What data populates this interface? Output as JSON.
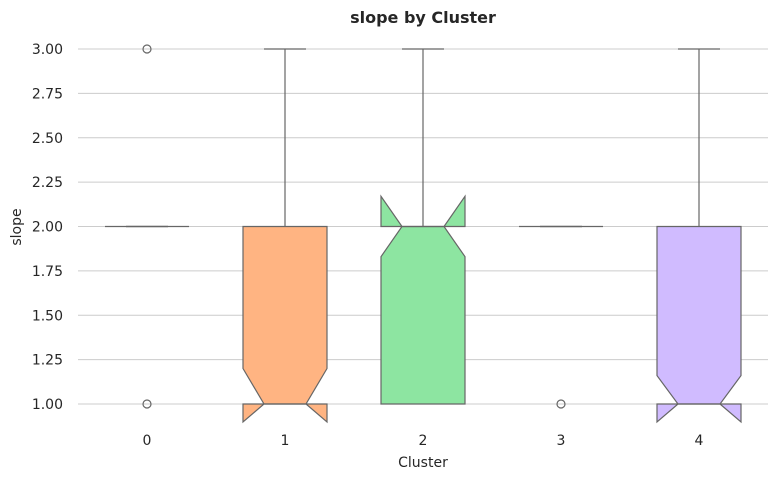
{
  "chart_data": {
    "type": "box",
    "title": "slope by Cluster",
    "xlabel": "Cluster",
    "ylabel": "slope",
    "categories": [
      "0",
      "1",
      "2",
      "3",
      "4"
    ],
    "ylim": [
      0.9,
      3.1
    ],
    "yticks": [
      "1.00",
      "1.25",
      "1.50",
      "1.75",
      "2.00",
      "2.25",
      "2.50",
      "2.75",
      "3.00"
    ],
    "grid": "horizontal",
    "notched": true,
    "boxes": [
      {
        "category": "0",
        "q1": 2.0,
        "median": 2.0,
        "q3": 2.0,
        "whisker_low": 2.0,
        "whisker_high": 2.0,
        "notch_low": 2.0,
        "notch_high": 2.0,
        "outliers": [
          1.0,
          3.0
        ],
        "color": "#a1c9f4"
      },
      {
        "category": "1",
        "q1": 1.0,
        "median": 1.0,
        "q3": 2.0,
        "whisker_low": 1.0,
        "whisker_high": 3.0,
        "notch_low": 0.8,
        "notch_high": 1.2,
        "outliers": [],
        "color": "#ffb482"
      },
      {
        "category": "2",
        "q1": 1.0,
        "median": 2.0,
        "q3": 2.0,
        "whisker_low": 1.0,
        "whisker_high": 3.0,
        "notch_low": 1.83,
        "notch_high": 2.17,
        "outliers": [],
        "color": "#8de5a1"
      },
      {
        "category": "3",
        "q1": 2.0,
        "median": 2.0,
        "q3": 2.0,
        "whisker_low": 2.0,
        "whisker_high": 2.0,
        "notch_low": 2.0,
        "notch_high": 2.0,
        "outliers": [
          1.0
        ],
        "color": "#a1c9f4"
      },
      {
        "category": "4",
        "q1": 1.0,
        "median": 1.0,
        "q3": 2.0,
        "whisker_low": 1.0,
        "whisker_high": 3.0,
        "notch_low": 0.84,
        "notch_high": 1.16,
        "outliers": [],
        "color": "#d0bbff"
      }
    ]
  }
}
